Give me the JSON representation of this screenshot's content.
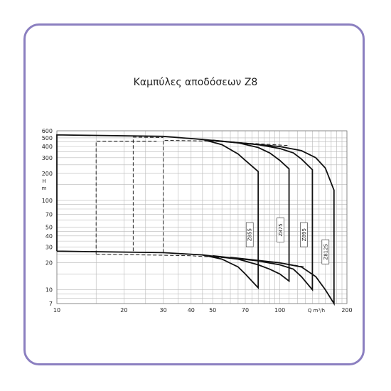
{
  "chart_data": {
    "type": "line",
    "title": "Καμπύλες αποδόσεων Z8",
    "ylabel_top": "H",
    "ylabel_bottom": "m",
    "xlabel": "Q m³/h",
    "x_scale": "log",
    "y_scale": "log",
    "xlim": [
      10,
      200
    ],
    "ylim": [
      7,
      600
    ],
    "grid": true,
    "x_ticks": [
      "10",
      "20",
      "30",
      "40",
      "50",
      "70",
      "100",
      "200"
    ],
    "y_ticks": [
      "600",
      "500",
      "400",
      "300",
      "200",
      "100",
      "70",
      "50",
      "40",
      "30",
      "20",
      "10",
      "7"
    ],
    "series": [
      {
        "name": "Z855",
        "x": [
          10,
          30,
          45,
          55,
          65,
          70,
          80
        ],
        "y_top": [
          540,
          520,
          480,
          420,
          330,
          280,
          210
        ],
        "y_bottom": [
          27,
          26,
          24.5,
          22,
          18,
          15,
          10.5
        ]
      },
      {
        "name": "Z875",
        "x": [
          45,
          65,
          80,
          90,
          100,
          110
        ],
        "y_top": [
          480,
          440,
          390,
          340,
          280,
          225
        ],
        "y_bottom": [
          24.5,
          22,
          19,
          17,
          15,
          12.5
        ]
      },
      {
        "name": "Z895",
        "x": [
          50,
          80,
          100,
          115,
          125,
          140
        ],
        "y_top": [
          470,
          420,
          380,
          340,
          290,
          220
        ],
        "y_bottom": [
          24,
          21,
          19,
          17,
          14,
          10
        ]
      },
      {
        "name": "Z8125",
        "x": [
          60,
          100,
          125,
          145,
          160,
          175
        ],
        "y_top": [
          450,
          400,
          360,
          300,
          230,
          130
        ],
        "y_bottom": [
          23,
          20,
          18,
          14,
          10,
          7
        ]
      }
    ]
  }
}
